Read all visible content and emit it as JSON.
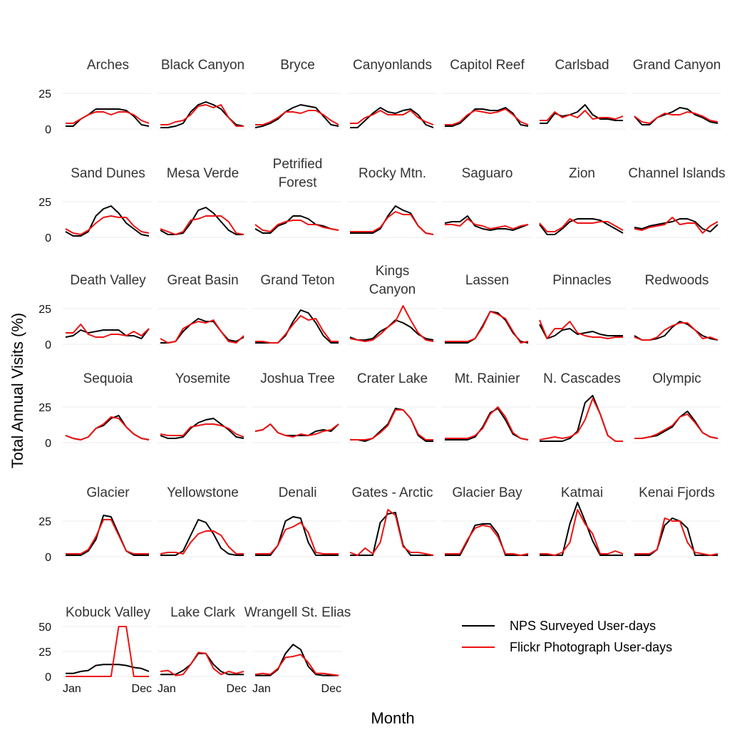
{
  "chart_data": {
    "type": "line",
    "xlabel": "Month",
    "ylabel": "Total Annual Visits (%)",
    "x_tick_labels": [
      "Jan",
      "Dec"
    ],
    "y_ticks_default": [
      "0",
      "25"
    ],
    "y_ticks_last_row": [
      "0",
      "25",
      "50"
    ],
    "ylim_default": [
      0,
      35
    ],
    "ylim_last_row": [
      0,
      50
    ],
    "grid": "horizontal",
    "legend": "bottom-right",
    "months": [
      1,
      2,
      3,
      4,
      5,
      6,
      7,
      8,
      9,
      10,
      11,
      12
    ],
    "series_names": [
      "NPS Surveyed User-days",
      "Flickr Photograph User-days"
    ],
    "colors": {
      "nps": "#000000",
      "flickr": "#ee1111"
    },
    "panels": [
      {
        "name": "Arches",
        "nps": [
          2,
          2,
          7,
          10,
          14,
          14,
          14,
          14,
          13,
          9,
          3,
          2
        ],
        "flickr": [
          4,
          4,
          7,
          10,
          12,
          12,
          10,
          12,
          12,
          10,
          6,
          4
        ]
      },
      {
        "name": "Black Canyon",
        "nps": [
          1,
          1,
          2,
          4,
          12,
          17,
          19,
          17,
          14,
          8,
          3,
          2
        ],
        "flickr": [
          3,
          3,
          5,
          6,
          10,
          16,
          17,
          15,
          17,
          8,
          2,
          2
        ]
      },
      {
        "name": "Bryce",
        "nps": [
          1,
          2,
          4,
          7,
          12,
          15,
          17,
          16,
          15,
          9,
          3,
          2
        ],
        "flickr": [
          3,
          3,
          5,
          8,
          12,
          12,
          11,
          13,
          13,
          10,
          6,
          3
        ]
      },
      {
        "name": "Canyonlands",
        "nps": [
          1,
          1,
          6,
          11,
          15,
          12,
          11,
          13,
          14,
          10,
          3,
          1
        ],
        "flickr": [
          4,
          4,
          8,
          10,
          13,
          10,
          10,
          10,
          13,
          8,
          5,
          3
        ]
      },
      {
        "name": "Capitol Reef",
        "nps": [
          2,
          2,
          4,
          9,
          14,
          14,
          13,
          13,
          15,
          11,
          3,
          2
        ],
        "flickr": [
          3,
          3,
          5,
          10,
          13,
          12,
          11,
          12,
          14,
          10,
          5,
          3
        ]
      },
      {
        "name": "Carlsbad",
        "nps": [
          4,
          4,
          11,
          9,
          10,
          12,
          17,
          10,
          7,
          7,
          6,
          6
        ],
        "flickr": [
          6,
          6,
          12,
          8,
          10,
          8,
          13,
          7,
          8,
          8,
          7,
          9
        ]
      },
      {
        "name": "Grand Canyon",
        "nps": [
          9,
          3,
          3,
          8,
          10,
          12,
          15,
          14,
          10,
          8,
          5,
          4
        ],
        "flickr": [
          9,
          5,
          4,
          8,
          11,
          10,
          10,
          12,
          11,
          9,
          6,
          5
        ]
      },
      {
        "name": "Sand Dunes",
        "nps": [
          4,
          1,
          1,
          4,
          15,
          20,
          22,
          17,
          10,
          6,
          2,
          1
        ],
        "flickr": [
          6,
          3,
          2,
          5,
          10,
          14,
          15,
          14,
          14,
          8,
          4,
          3
        ]
      },
      {
        "name": "Mesa Verde",
        "nps": [
          5,
          2,
          2,
          3,
          10,
          19,
          21,
          17,
          11,
          5,
          2,
          2
        ],
        "flickr": [
          6,
          4,
          2,
          4,
          12,
          13,
          15,
          15,
          15,
          11,
          3,
          2
        ]
      },
      {
        "name": "Petrified Forest",
        "nps": [
          6,
          3,
          3,
          8,
          10,
          15,
          15,
          13,
          9,
          8,
          6,
          5
        ],
        "flickr": [
          9,
          5,
          4,
          9,
          11,
          12,
          12,
          9,
          9,
          7,
          6,
          5
        ]
      },
      {
        "name": "Rocky Mtn.",
        "nps": [
          3,
          3,
          3,
          3,
          6,
          15,
          22,
          19,
          17,
          8,
          3,
          2
        ],
        "flickr": [
          4,
          4,
          4,
          4,
          7,
          14,
          18,
          16,
          16,
          8,
          3,
          2
        ]
      },
      {
        "name": "Saguaro",
        "nps": [
          10,
          11,
          11,
          15,
          8,
          6,
          5,
          6,
          6,
          5,
          7,
          9
        ],
        "flickr": [
          9,
          9,
          8,
          13,
          9,
          8,
          6,
          7,
          8,
          6,
          8,
          9
        ]
      },
      {
        "name": "Zion",
        "nps": [
          9,
          2,
          2,
          6,
          11,
          13,
          13,
          13,
          12,
          9,
          6,
          3
        ],
        "flickr": [
          10,
          4,
          4,
          7,
          13,
          10,
          10,
          10,
          11,
          11,
          8,
          5
        ]
      },
      {
        "name": "Channel Islands",
        "nps": [
          7,
          6,
          8,
          9,
          10,
          11,
          13,
          13,
          11,
          6,
          4,
          9
        ],
        "flickr": [
          6,
          5,
          7,
          8,
          9,
          14,
          9,
          10,
          10,
          3,
          8,
          11
        ]
      },
      {
        "name": "Death Valley",
        "nps": [
          5,
          6,
          10,
          8,
          9,
          10,
          10,
          10,
          6,
          6,
          4,
          11
        ],
        "flickr": [
          8,
          8,
          14,
          7,
          5,
          5,
          7,
          7,
          6,
          9,
          6,
          11
        ]
      },
      {
        "name": "Great Basin",
        "nps": [
          1,
          1,
          2,
          9,
          14,
          18,
          16,
          16,
          9,
          3,
          2,
          5
        ],
        "flickr": [
          4,
          1,
          2,
          11,
          14,
          16,
          15,
          17,
          9,
          2,
          1,
          6
        ]
      },
      {
        "name": "Grand Teton",
        "nps": [
          1,
          1,
          1,
          1,
          6,
          16,
          24,
          22,
          15,
          6,
          1,
          1
        ],
        "flickr": [
          2,
          2,
          1,
          1,
          7,
          14,
          20,
          17,
          18,
          9,
          2,
          2
        ]
      },
      {
        "name": "Kings Canyon",
        "nps": [
          5,
          3,
          3,
          4,
          9,
          12,
          17,
          15,
          12,
          7,
          4,
          3
        ],
        "flickr": [
          4,
          3,
          2,
          3,
          7,
          12,
          16,
          27,
          17,
          8,
          3,
          2
        ]
      },
      {
        "name": "Lassen",
        "nps": [
          1,
          1,
          1,
          1,
          4,
          13,
          23,
          22,
          17,
          8,
          2,
          1
        ],
        "flickr": [
          2,
          2,
          2,
          2,
          4,
          12,
          23,
          21,
          18,
          9,
          1,
          2
        ]
      },
      {
        "name": "Pinnacles",
        "nps": [
          14,
          4,
          6,
          10,
          11,
          7,
          8,
          9,
          7,
          6,
          6,
          6
        ],
        "flickr": [
          17,
          4,
          11,
          11,
          16,
          8,
          6,
          5,
          5,
          4,
          5,
          5
        ]
      },
      {
        "name": "Redwoods",
        "nps": [
          6,
          3,
          3,
          4,
          6,
          12,
          16,
          14,
          10,
          6,
          4,
          3
        ],
        "flickr": [
          5,
          3,
          3,
          5,
          10,
          13,
          15,
          15,
          10,
          4,
          5,
          3
        ]
      },
      {
        "name": "Sequoia",
        "nps": [
          5,
          3,
          2,
          4,
          10,
          12,
          17,
          19,
          11,
          6,
          3,
          2
        ],
        "flickr": [
          5,
          3,
          2,
          4,
          10,
          13,
          18,
          17,
          11,
          6,
          3,
          2
        ]
      },
      {
        "name": "Yosemite",
        "nps": [
          5,
          3,
          3,
          4,
          10,
          14,
          16,
          17,
          13,
          9,
          4,
          3
        ],
        "flickr": [
          6,
          5,
          5,
          5,
          11,
          12,
          13,
          13,
          12,
          10,
          6,
          4
        ]
      },
      {
        "name": "Joshua Tree",
        "nps": [
          8,
          9,
          13,
          7,
          5,
          5,
          5,
          5,
          8,
          9,
          8,
          13
        ],
        "flickr": [
          8,
          9,
          13,
          7,
          5,
          4,
          6,
          5,
          6,
          8,
          9,
          13
        ]
      },
      {
        "name": "Crater Lake",
        "nps": [
          2,
          2,
          1,
          3,
          8,
          13,
          24,
          23,
          17,
          5,
          1,
          1
        ],
        "flickr": [
          2,
          2,
          2,
          3,
          7,
          12,
          23,
          23,
          17,
          6,
          2,
          2
        ]
      },
      {
        "name": "Mt. Rainier",
        "nps": [
          2,
          2,
          2,
          2,
          4,
          11,
          21,
          24,
          16,
          6,
          3,
          2
        ],
        "flickr": [
          3,
          3,
          3,
          3,
          5,
          10,
          20,
          25,
          18,
          7,
          3,
          2
        ]
      },
      {
        "name": "N. Cascades",
        "nps": [
          1,
          1,
          1,
          1,
          3,
          8,
          28,
          33,
          20,
          5,
          1,
          1
        ],
        "flickr": [
          2,
          3,
          4,
          3,
          4,
          7,
          16,
          31,
          20,
          5,
          1,
          1
        ]
      },
      {
        "name": "Olympic",
        "nps": [
          3,
          3,
          4,
          5,
          8,
          11,
          18,
          22,
          15,
          7,
          4,
          3
        ],
        "flickr": [
          3,
          3,
          4,
          6,
          9,
          12,
          18,
          20,
          14,
          7,
          4,
          3
        ]
      },
      {
        "name": "Glacier",
        "nps": [
          1,
          1,
          1,
          4,
          12,
          29,
          28,
          16,
          4,
          1,
          1,
          1
        ],
        "flickr": [
          2,
          2,
          2,
          5,
          14,
          26,
          26,
          15,
          4,
          2,
          2,
          2
        ]
      },
      {
        "name": "Yellowstone",
        "nps": [
          1,
          1,
          1,
          4,
          15,
          26,
          24,
          16,
          6,
          2,
          1,
          1
        ],
        "flickr": [
          2,
          3,
          3,
          2,
          10,
          16,
          18,
          18,
          15,
          7,
          2,
          2
        ]
      },
      {
        "name": "Denali",
        "nps": [
          1,
          1,
          1,
          8,
          25,
          28,
          27,
          10,
          1,
          1,
          1,
          1
        ],
        "flickr": [
          2,
          2,
          2,
          8,
          19,
          21,
          24,
          17,
          3,
          2,
          2,
          2
        ]
      },
      {
        "name": "Gates - Arctic",
        "nps": [
          1,
          1,
          1,
          1,
          24,
          30,
          31,
          8,
          1,
          1,
          1,
          1
        ],
        "flickr": [
          3,
          1,
          6,
          2,
          10,
          33,
          29,
          7,
          3,
          3,
          2,
          1
        ]
      },
      {
        "name": "Glacier Bay",
        "nps": [
          1,
          1,
          1,
          11,
          22,
          23,
          23,
          16,
          1,
          1,
          1,
          1
        ],
        "flickr": [
          2,
          2,
          2,
          12,
          20,
          22,
          21,
          14,
          2,
          2,
          1,
          2
        ]
      },
      {
        "name": "Katmai",
        "nps": [
          1,
          1,
          1,
          1,
          23,
          38,
          25,
          11,
          1,
          1,
          1,
          1
        ],
        "flickr": [
          2,
          2,
          1,
          3,
          10,
          33,
          23,
          16,
          2,
          2,
          4,
          2
        ]
      },
      {
        "name": "Kenai Fjords",
        "nps": [
          1,
          1,
          1,
          5,
          22,
          27,
          25,
          20,
          1,
          1,
          1,
          1
        ],
        "flickr": [
          2,
          2,
          2,
          5,
          27,
          25,
          25,
          10,
          3,
          2,
          1,
          2
        ]
      },
      {
        "name": "Kobuck Valley",
        "nps": [
          3,
          3,
          5,
          6,
          11,
          12,
          12,
          12,
          11,
          9,
          8,
          5
        ],
        "flickr": [
          0,
          0,
          0,
          0,
          0,
          0,
          0,
          50,
          50,
          0,
          0,
          0
        ]
      },
      {
        "name": "Lake Clark",
        "nps": [
          2,
          2,
          2,
          6,
          12,
          23,
          23,
          12,
          5,
          2,
          2,
          2
        ],
        "flickr": [
          5,
          6,
          1,
          2,
          12,
          24,
          23,
          8,
          2,
          5,
          3,
          5
        ]
      },
      {
        "name": "Wrangell St. Elias",
        "nps": [
          1,
          1,
          1,
          7,
          23,
          32,
          27,
          10,
          2,
          1,
          1,
          1
        ],
        "flickr": [
          2,
          3,
          2,
          8,
          19,
          20,
          22,
          14,
          3,
          3,
          2,
          1
        ]
      }
    ]
  }
}
